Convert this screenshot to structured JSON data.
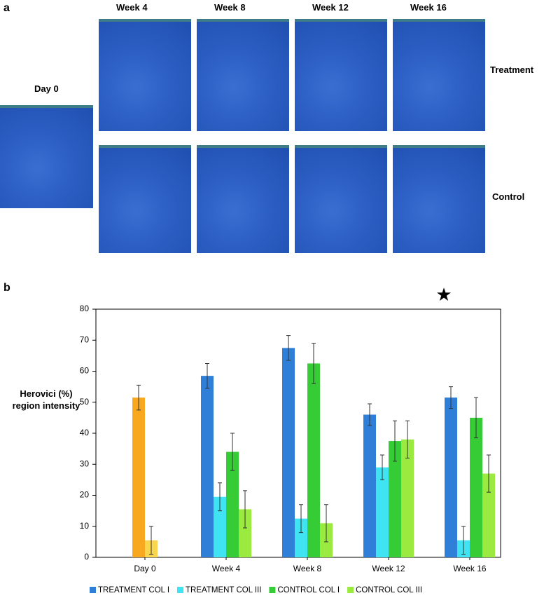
{
  "panel_a": {
    "label": "a",
    "day0": "Day 0",
    "columns": [
      "Week 4",
      "Week 8",
      "Week 12",
      "Week 16"
    ],
    "rows": [
      "Treatment",
      "Control"
    ]
  },
  "chart_data": {
    "type": "bar",
    "panel_label": "b",
    "ylabel": "Herovici (%) region intensity",
    "categories": [
      "Day 0",
      "Week 4",
      "Week 8",
      "Week 12",
      "Week 16"
    ],
    "series": [
      {
        "name": "TREATMENT COL I",
        "color": "#2f7fd8",
        "point_colors": [
          "#f7a81e",
          null,
          null,
          null,
          null
        ],
        "values": [
          51.5,
          58.5,
          67.5,
          46,
          51.5
        ],
        "errors": [
          4,
          4,
          4,
          3.5,
          3.5
        ]
      },
      {
        "name": "TREATMENT COL III",
        "color": "#3fe3f2",
        "point_colors": [
          "#fad54e",
          null,
          null,
          null,
          null
        ],
        "values": [
          5.5,
          19.5,
          12.5,
          29,
          5.5
        ],
        "errors": [
          4.5,
          4.5,
          4.5,
          4,
          4.5
        ]
      },
      {
        "name": "CONTROL COL I",
        "color": "#35cc35",
        "values": [
          null,
          34,
          62.5,
          37.5,
          45
        ],
        "errors": [
          null,
          6,
          6.5,
          6.5,
          6.5
        ]
      },
      {
        "name": "CONTROL COL III",
        "color": "#9bea3f",
        "values": [
          null,
          15.5,
          11,
          38,
          27
        ],
        "errors": [
          null,
          6,
          6,
          6,
          6
        ]
      }
    ],
    "ylim": [
      0,
      80
    ],
    "yticks": [
      0,
      10,
      20,
      30,
      40,
      50,
      60,
      70,
      80
    ],
    "annotation": "★"
  }
}
